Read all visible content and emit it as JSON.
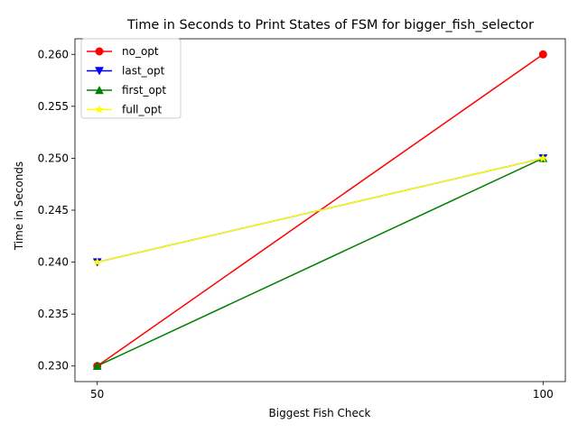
{
  "chart_data": {
    "type": "line",
    "title": "Time in Seconds to Print States of FSM for bigger_fish_selector",
    "xlabel": "Biggest Fish Check",
    "ylabel": "Time in Seconds",
    "x": [
      50,
      100
    ],
    "xticks": [
      "50",
      "100"
    ],
    "xlim": [
      47.5,
      102.5
    ],
    "ylim": [
      0.2285,
      0.2615
    ],
    "yticks": [
      "0.230",
      "0.235",
      "0.240",
      "0.245",
      "0.250",
      "0.255",
      "0.260"
    ],
    "grid": false,
    "legend_position": "top-left",
    "series": [
      {
        "name": "no_opt",
        "values": [
          0.23,
          0.26
        ],
        "color": "#ff0000",
        "marker": "circle"
      },
      {
        "name": "last_opt",
        "values": [
          0.24,
          0.25
        ],
        "color": "#0000ff",
        "marker": "triangle-down"
      },
      {
        "name": "first_opt",
        "values": [
          0.23,
          0.25
        ],
        "color": "#008000",
        "marker": "triangle-up"
      },
      {
        "name": "full_opt",
        "values": [
          0.24,
          0.25
        ],
        "color": "#ffff00",
        "marker": "star"
      }
    ]
  }
}
